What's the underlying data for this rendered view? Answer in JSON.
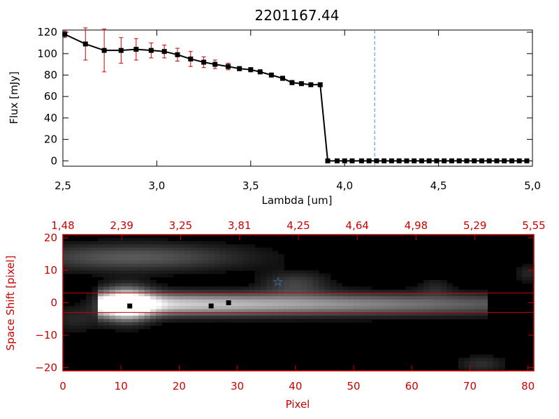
{
  "chart_data": [
    {
      "type": "line",
      "title": "2201167.44",
      "xlabel": "Lambda [um]",
      "ylabel": "Flux [mJy]",
      "xlim": [
        2.5,
        5.0
      ],
      "ylim": [
        -5,
        122
      ],
      "xticks": [
        2.5,
        3.0,
        3.5,
        4.0,
        4.5,
        5.0
      ],
      "xtick_labels": [
        "2,5",
        "3,0",
        "3,5",
        "4,0",
        "4,5",
        "5,0"
      ],
      "yticks": [
        0,
        20,
        40,
        60,
        80,
        100,
        120
      ],
      "ytick_labels": [
        "0",
        "20",
        "40",
        "60",
        "80",
        "100",
        "120"
      ],
      "vline_x": 4.16,
      "colors": {
        "line": "#000000",
        "marker": "#000000",
        "errorbar": "#cc0000",
        "vline": "#3b8fe0"
      },
      "series": [
        {
          "x": [
            2.51,
            2.62,
            2.72,
            2.81,
            2.89,
            2.97,
            3.04,
            3.11,
            3.18,
            3.25,
            3.31,
            3.38,
            3.44,
            3.5,
            3.55,
            3.61,
            3.67,
            3.72,
            3.77,
            3.82,
            3.87,
            3.91,
            3.96,
            4.0,
            4.04,
            4.09,
            4.13,
            4.17,
            4.21,
            4.25,
            4.29,
            4.33,
            4.37,
            4.41,
            4.45,
            4.49,
            4.53,
            4.57,
            4.61,
            4.65,
            4.69,
            4.73,
            4.77,
            4.81,
            4.85,
            4.89,
            4.93,
            4.97
          ],
          "y": [
            118,
            109,
            103,
            103,
            104,
            103,
            102,
            99,
            95,
            92,
            90,
            88,
            86,
            85,
            83,
            80,
            77,
            73,
            72,
            71,
            71,
            0,
            0,
            0,
            0,
            0,
            0,
            0,
            0,
            0,
            0,
            0,
            0,
            0,
            0,
            0,
            0,
            0,
            0,
            0,
            0,
            0,
            0,
            0,
            0,
            0,
            0,
            0
          ],
          "yerr": [
            3,
            15,
            20,
            12,
            10,
            7,
            6,
            6,
            7,
            5,
            4,
            3,
            2,
            2,
            2,
            2,
            2,
            2,
            1,
            1,
            1,
            0,
            0,
            0,
            0,
            0,
            0,
            0,
            0,
            0,
            0,
            0,
            0,
            0,
            0,
            0,
            0,
            0,
            0,
            0,
            0,
            0,
            0,
            0,
            0,
            0,
            0,
            0
          ]
        }
      ],
      "grid": false,
      "legend": false
    },
    {
      "type": "heatmap",
      "xlabel": "Pixel",
      "ylabel": "Space Shift [pixel]",
      "xlim": [
        0,
        81
      ],
      "ylim": [
        -21,
        21
      ],
      "xticks": [
        0,
        10,
        20,
        30,
        40,
        50,
        60,
        70,
        80
      ],
      "xtick_labels": [
        "0",
        "10",
        "20",
        "30",
        "40",
        "50",
        "60",
        "70",
        "80"
      ],
      "yticks": [
        -20,
        -10,
        0,
        10,
        20
      ],
      "ytick_labels": [
        "−20",
        "−10",
        "0",
        "10",
        "20"
      ],
      "top_axis_labels": [
        "1,48",
        "2,39",
        "3,25",
        "3,81",
        "4,25",
        "4,64",
        "4,98",
        "5,29",
        "5,55"
      ],
      "hlines_y": [
        3,
        -3
      ],
      "marked_points": [
        {
          "x": 11.5,
          "y": -1
        },
        {
          "x": 25.5,
          "y": -1
        },
        {
          "x": 28.5,
          "y": 0
        }
      ],
      "star_point": {
        "x": 37,
        "y": 6.5
      },
      "colors": {
        "axes": "#cc0000",
        "star": "#3b8fe0",
        "hline": "#cc0000"
      }
    }
  ]
}
